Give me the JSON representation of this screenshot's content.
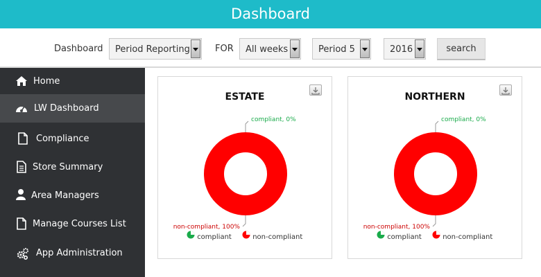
{
  "header": {
    "title": "Dashboard"
  },
  "filters": {
    "dashboard_label": "Dashboard",
    "report_select": "Period Reporting",
    "for_label": "FOR",
    "weeks_select": "All weeks",
    "period_select": "Period 5",
    "year_select": "2016",
    "search_label": "search"
  },
  "sidebar": {
    "items": [
      {
        "label": "Home",
        "icon": "home-icon"
      },
      {
        "label": "LW Dashboard",
        "icon": "dashboard-icon",
        "active": true
      },
      {
        "label": "Compliance",
        "icon": "document-icon"
      },
      {
        "label": "Store Summary",
        "icon": "list-document-icon"
      },
      {
        "label": "Area Managers",
        "icon": "user-icon"
      },
      {
        "label": "Manage Courses List",
        "icon": "document-icon"
      },
      {
        "label": "App Administration",
        "icon": "gears-icon"
      }
    ]
  },
  "colors": {
    "compliant": "#1aab4b",
    "non_compliant": "#ff0000",
    "header": "#1ebbc9",
    "sidebar": "#2f3134"
  },
  "chart_data": [
    {
      "type": "pie",
      "title": "ESTATE",
      "categories": [
        "compliant",
        "non-compliant"
      ],
      "values": [
        0,
        100
      ],
      "data_labels": [
        "compliant, 0%",
        "non-compliant, 100%"
      ],
      "legend": [
        "compliant",
        "non-compliant"
      ],
      "legend_position": "bottom"
    },
    {
      "type": "pie",
      "title": "NORTHERN",
      "categories": [
        "compliant",
        "non-compliant"
      ],
      "values": [
        0,
        100
      ],
      "data_labels": [
        "compliant, 0%",
        "non-compliant, 100%"
      ],
      "legend": [
        "compliant",
        "non-compliant"
      ],
      "legend_position": "bottom"
    }
  ]
}
